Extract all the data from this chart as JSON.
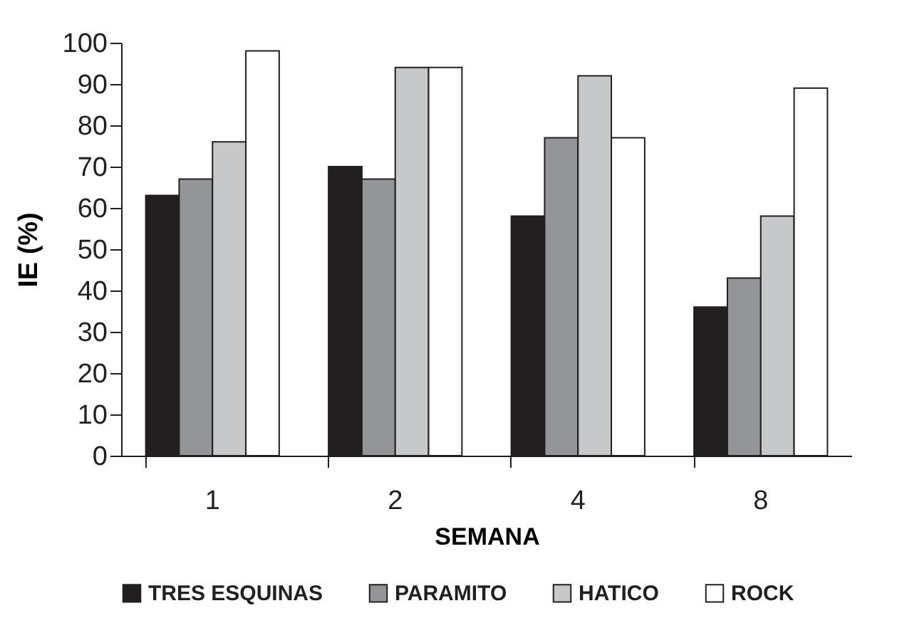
{
  "chart_data": {
    "type": "bar",
    "xlabel": "SEMANA",
    "ylabel": "IE (%)",
    "categories": [
      "1",
      "2",
      "4",
      "8"
    ],
    "series": [
      {
        "name": "TRES ESQUINAS",
        "color": "#231f20",
        "values": [
          63,
          70,
          58,
          36
        ]
      },
      {
        "name": "PARAMITO",
        "color": "#939598",
        "values": [
          67,
          67,
          77,
          43
        ]
      },
      {
        "name": "HATICO",
        "color": "#c7c8ca",
        "values": [
          76,
          94,
          92,
          58
        ]
      },
      {
        "name": "ROCK",
        "color": "#ffffff",
        "values": [
          98,
          94,
          77,
          89
        ]
      }
    ],
    "ylim": [
      0,
      100
    ],
    "yticks": [
      0,
      10,
      20,
      30,
      40,
      50,
      60,
      70,
      80,
      90,
      100
    ],
    "grid": false,
    "legend": "bottom"
  }
}
